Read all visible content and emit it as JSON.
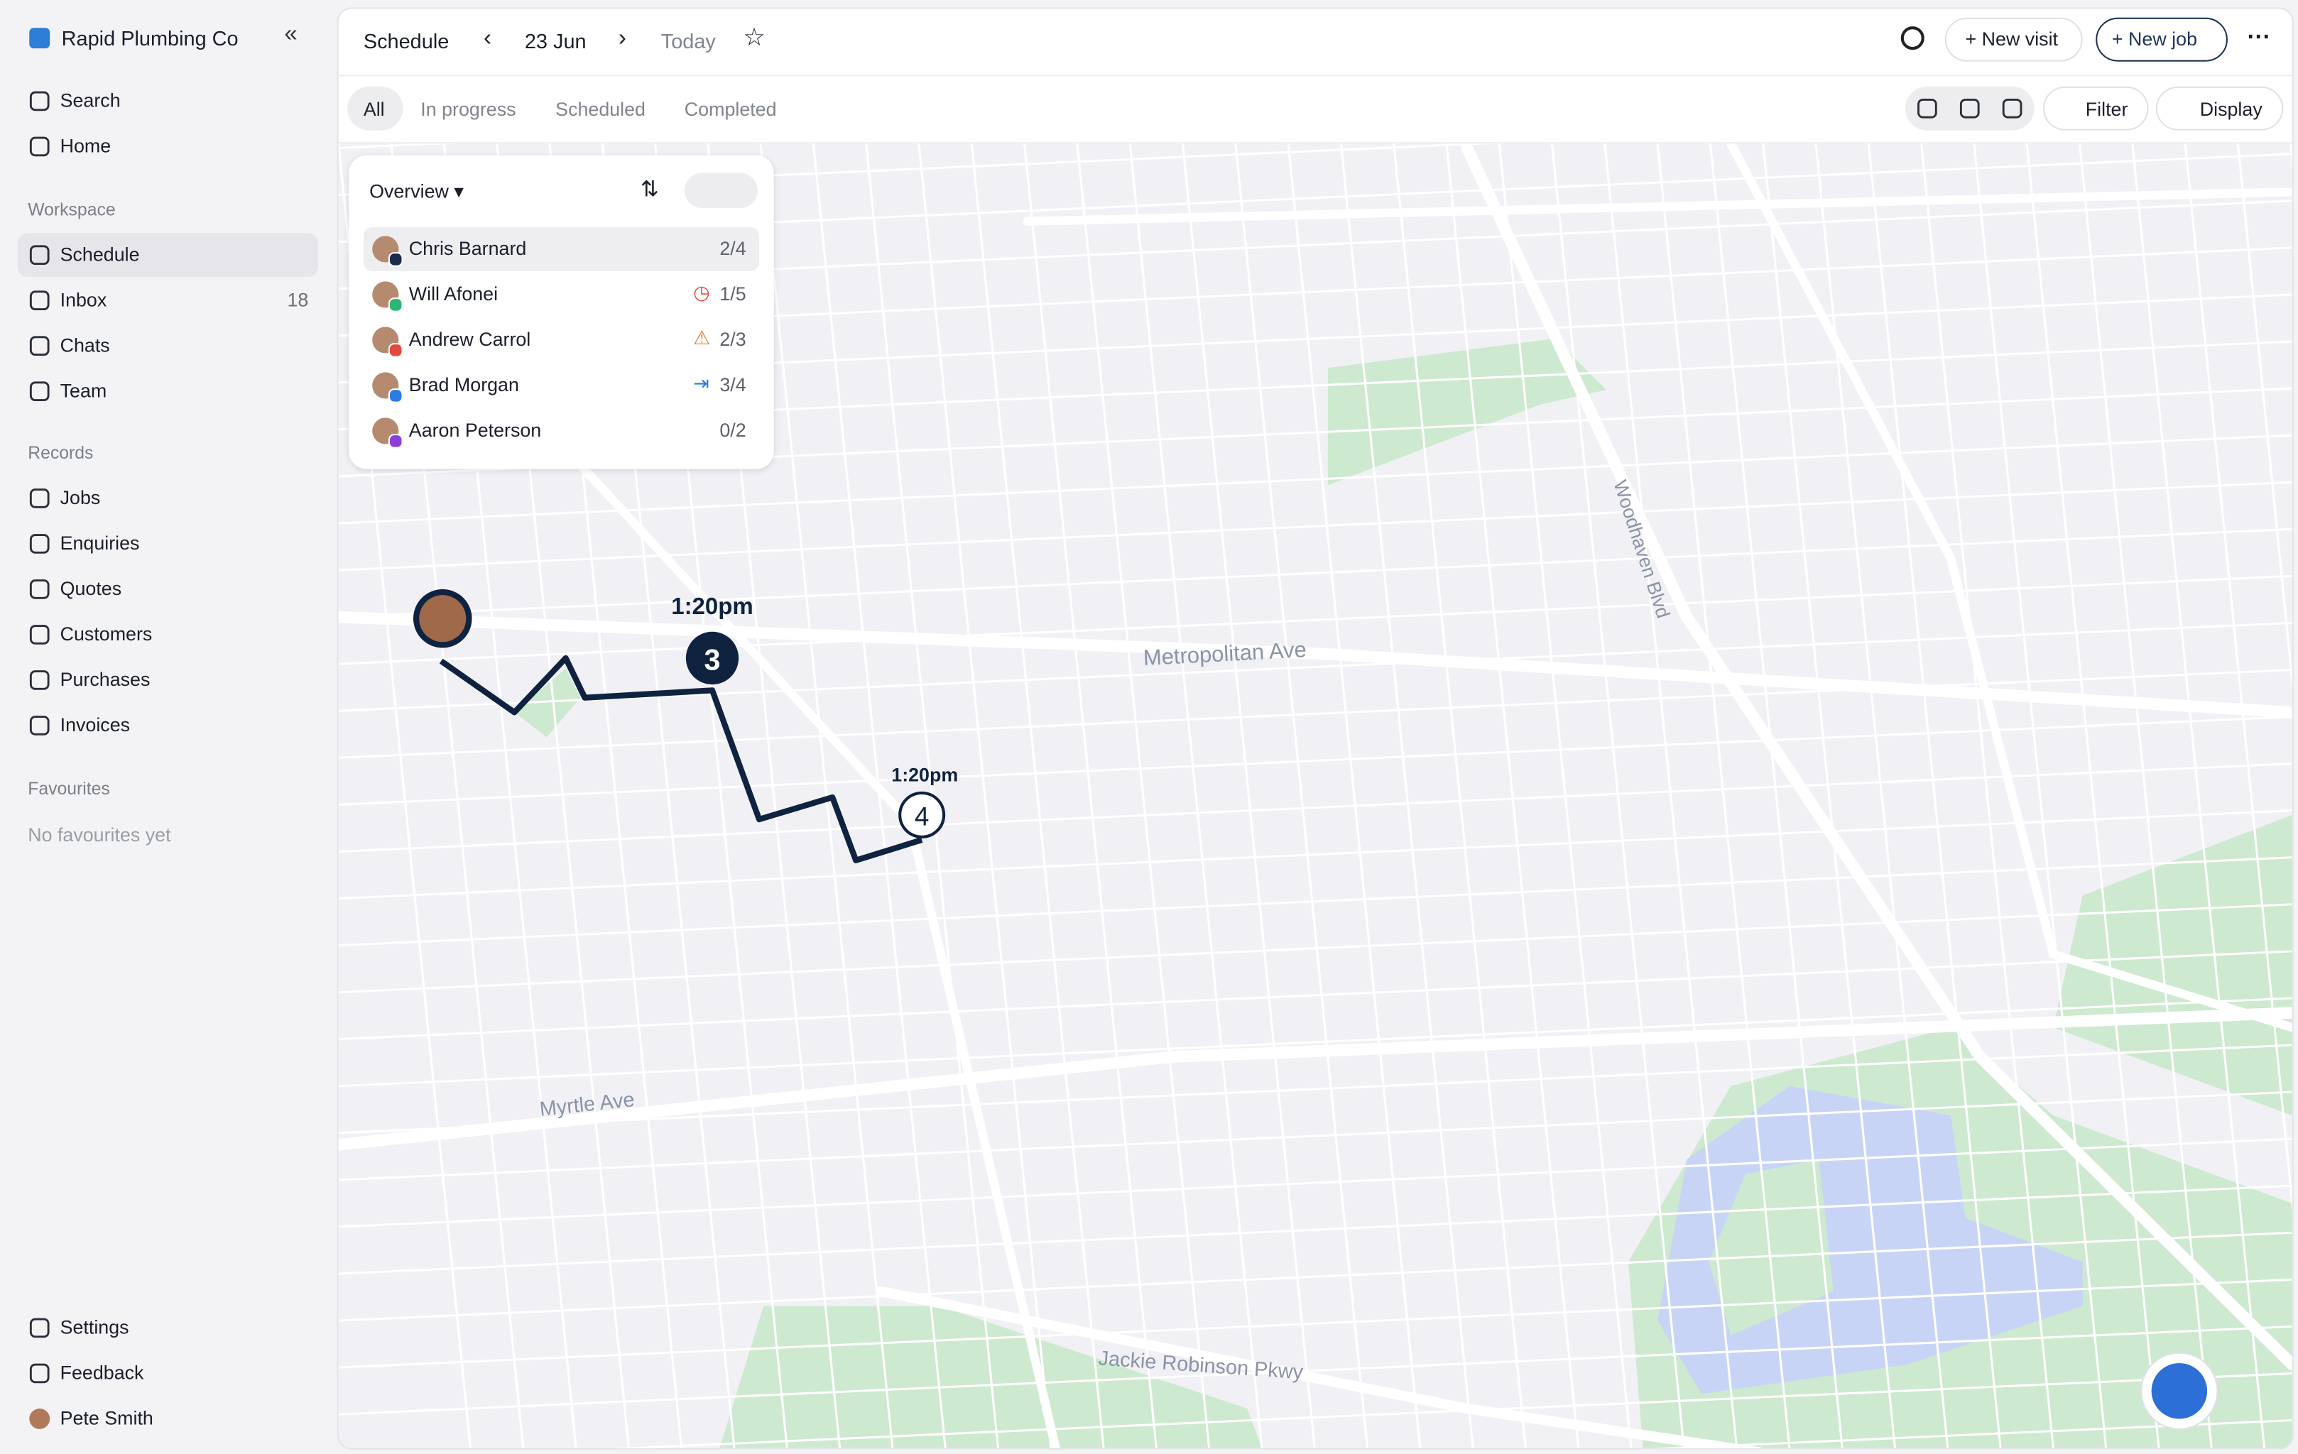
{
  "sidebar": {
    "brand": "Rapid Plumbing Co",
    "top": [
      "Search",
      "Home"
    ],
    "workspace": {
      "heading": "Workspace",
      "items": [
        {
          "label": "Schedule"
        },
        {
          "label": "Inbox",
          "badge": "18"
        },
        {
          "label": "Chats"
        },
        {
          "label": "Team"
        }
      ]
    },
    "records": {
      "heading": "Records",
      "items": [
        "Jobs",
        "Enquiries",
        "Quotes",
        "Customers",
        "Purchases",
        "Invoices"
      ]
    },
    "favourites": {
      "heading": "Favourites",
      "empty": "No favourites yet"
    },
    "footer": [
      "Settings",
      "Feedback",
      "Pete Smith"
    ]
  },
  "toolbar": {
    "title": "Schedule",
    "date": "23 Jun",
    "today": "Today",
    "new_visit": "New visit",
    "new_job": "New job"
  },
  "tabs": [
    "All",
    "In progress",
    "Scheduled",
    "Completed"
  ],
  "view_actions": {
    "filter": "Filter",
    "display": "Display"
  },
  "overview": {
    "title": "Overview",
    "people": [
      {
        "name": "Chris Barnard",
        "progress": "2/4"
      },
      {
        "name": "Will Afonei",
        "progress": "1/5"
      },
      {
        "name": "Andrew Carrol",
        "progress": "2/3"
      },
      {
        "name": "Brad Morgan",
        "progress": "3/4"
      },
      {
        "name": "Aaron Peterson",
        "progress": "0/2"
      }
    ]
  },
  "map": {
    "streets": [
      "Metropolitan Ave",
      "Myrtle Ave",
      "Jackie Robinson Pkwy",
      "Woodhaven Blvd"
    ],
    "stops": [
      {
        "number": "3",
        "time": "1:20pm"
      },
      {
        "number": "4",
        "time": "1:20pm"
      }
    ]
  }
}
